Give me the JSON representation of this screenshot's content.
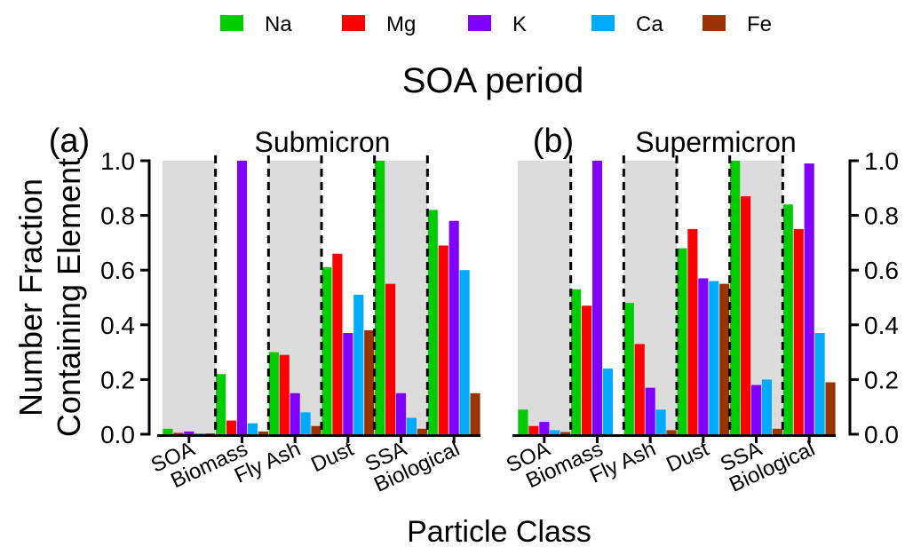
{
  "figure": {
    "title": "SOA period",
    "xlabel": "Particle Class",
    "ylabel_line1": "Number Fraction",
    "ylabel_line2": "Containing Element",
    "legend_placement": "top-center"
  },
  "legend": [
    {
      "name": "Na",
      "color": "#00cc00"
    },
    {
      "name": "Mg",
      "color": "#ff0000"
    },
    {
      "name": "K",
      "color": "#7f00ff"
    },
    {
      "name": "Ca",
      "color": "#00aaff"
    },
    {
      "name": "Fe",
      "color": "#993300"
    }
  ],
  "chart_data": [
    {
      "type": "bar",
      "panel_label": "(a)",
      "title": "Submicron",
      "ylim": [
        0,
        1.0
      ],
      "yticks": [
        "0.0",
        "0.2",
        "0.4",
        "0.6",
        "0.8",
        "1.0"
      ],
      "y_axis_side": "left",
      "categories": [
        "SOA",
        "Biomass",
        "Fly Ash",
        "Dust",
        "SSA",
        "Biological"
      ],
      "shaded_categories": [
        "SOA",
        "Fly Ash",
        "SSA"
      ],
      "series": [
        {
          "name": "Na",
          "color": "#00cc00",
          "values": [
            0.02,
            0.22,
            0.3,
            0.61,
            1.0,
            0.82
          ]
        },
        {
          "name": "Mg",
          "color": "#ff0000",
          "values": [
            0.005,
            0.05,
            0.29,
            0.66,
            0.55,
            0.69
          ]
        },
        {
          "name": "K",
          "color": "#7f00ff",
          "values": [
            0.01,
            1.0,
            0.15,
            0.37,
            0.15,
            0.78
          ]
        },
        {
          "name": "Ca",
          "color": "#00aaff",
          "values": [
            0.003,
            0.04,
            0.08,
            0.51,
            0.06,
            0.6
          ]
        },
        {
          "name": "Fe",
          "color": "#993300",
          "values": [
            0.003,
            0.01,
            0.03,
            0.38,
            0.02,
            0.15
          ]
        }
      ]
    },
    {
      "type": "bar",
      "panel_label": "(b)",
      "title": "Supermicron",
      "ylim": [
        0,
        1.0
      ],
      "yticks": [
        "0.0",
        "0.2",
        "0.4",
        "0.6",
        "0.8",
        "1.0"
      ],
      "y_axis_side": "right",
      "categories": [
        "SOA",
        "Biomass",
        "Fly Ash",
        "Dust",
        "SSA",
        "Biological"
      ],
      "shaded_categories": [
        "SOA",
        "Fly Ash",
        "SSA"
      ],
      "series": [
        {
          "name": "Na",
          "color": "#00cc00",
          "values": [
            0.09,
            0.53,
            0.48,
            0.68,
            1.0,
            0.84
          ]
        },
        {
          "name": "Mg",
          "color": "#ff0000",
          "values": [
            0.03,
            0.47,
            0.33,
            0.75,
            0.87,
            0.75
          ]
        },
        {
          "name": "K",
          "color": "#7f00ff",
          "values": [
            0.045,
            1.0,
            0.17,
            0.57,
            0.18,
            0.99
          ]
        },
        {
          "name": "Ca",
          "color": "#00aaff",
          "values": [
            0.015,
            0.24,
            0.09,
            0.56,
            0.2,
            0.37
          ]
        },
        {
          "name": "Fe",
          "color": "#993300",
          "values": [
            0.008,
            0.0,
            0.015,
            0.55,
            0.02,
            0.19
          ]
        }
      ]
    }
  ]
}
